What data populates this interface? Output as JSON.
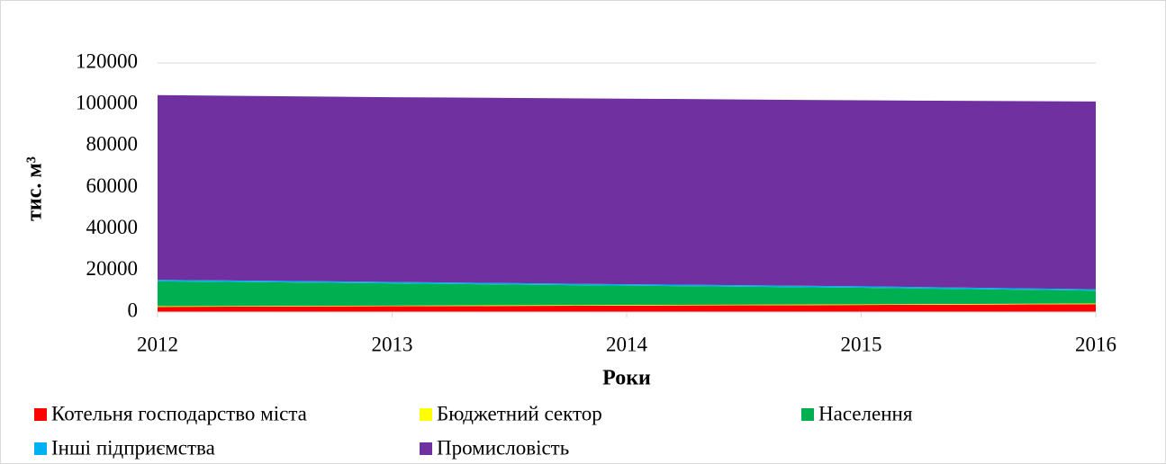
{
  "chart_data": {
    "type": "stacked_area",
    "x": [
      2012,
      2013,
      2014,
      2015,
      2016
    ],
    "xlim": [
      2012,
      2016
    ],
    "xticks": [
      2012,
      2013,
      2014,
      2015,
      2016
    ],
    "ylim": [
      0,
      120000
    ],
    "yticks": [
      0,
      20000,
      40000,
      60000,
      80000,
      100000,
      120000
    ],
    "grid": true,
    "xlabel": "Роки",
    "ylabel": "тис. м³",
    "legend": "bottom",
    "series": [
      {
        "name": "Котельня господарство міста",
        "color": "#ff0000",
        "values": [
          2500,
          2800,
          3100,
          3400,
          3800
        ]
      },
      {
        "name": "Бюджетний сектор",
        "color": "#ffff00",
        "values": [
          300,
          300,
          300,
          300,
          300
        ]
      },
      {
        "name": "Населення",
        "color": "#00b050",
        "values": [
          12000,
          10700,
          9300,
          8000,
          6200
        ]
      },
      {
        "name": "Інші підприємства",
        "color": "#00b0f0",
        "values": [
          700,
          700,
          700,
          700,
          700
        ]
      },
      {
        "name": "Промисловість",
        "color": "#7030a0",
        "values": [
          89000,
          89000,
          89400,
          89600,
          90400
        ]
      }
    ]
  }
}
